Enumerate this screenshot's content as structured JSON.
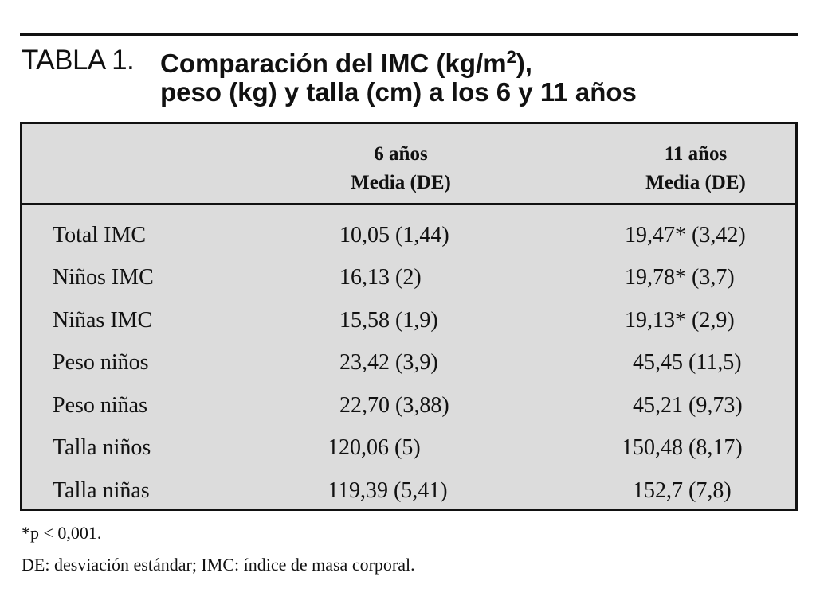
{
  "caption": {
    "label": "TABLA 1.",
    "title_line1": "Comparación del IMC (kg/m",
    "title_sup": "2",
    "title_line1_end": "),",
    "title_line2": "peso (kg) y talla (cm) a los 6 y 11 años"
  },
  "table": {
    "headers": [
      {
        "line1": "6 años",
        "line2": "Media (DE)"
      },
      {
        "line1": "11 años",
        "line2": "Media (DE)"
      }
    ],
    "rows": [
      {
        "label": "Total IMC",
        "age6": "10,05 (1,44)",
        "age11": "19,47* (3,42)"
      },
      {
        "label": "Niños IMC",
        "age6": "16,13 (2)",
        "age11": "19,78* (3,7)"
      },
      {
        "label": "Niñas IMC",
        "age6": "15,58 (1,9)",
        "age11": "19,13* (2,9)"
      },
      {
        "label": "Peso niños",
        "age6": "23,42 (3,9)",
        "age11": "45,45 (11,5)"
      },
      {
        "label": "Peso niñas",
        "age6": "22,70 (3,88)",
        "age11": "45,21 (9,73)"
      },
      {
        "label": "Talla niños",
        "age6": "120,06 (5)",
        "age11": "150,48 (8,17)"
      },
      {
        "label": "Talla niñas",
        "age6": "119,39 (5,41)",
        "age11": "152,7 (7,8)"
      }
    ]
  },
  "footnotes": {
    "significance": "*p < 0,001.",
    "abbreviations": "DE: desviación estándar; IMC: índice de masa corporal."
  }
}
